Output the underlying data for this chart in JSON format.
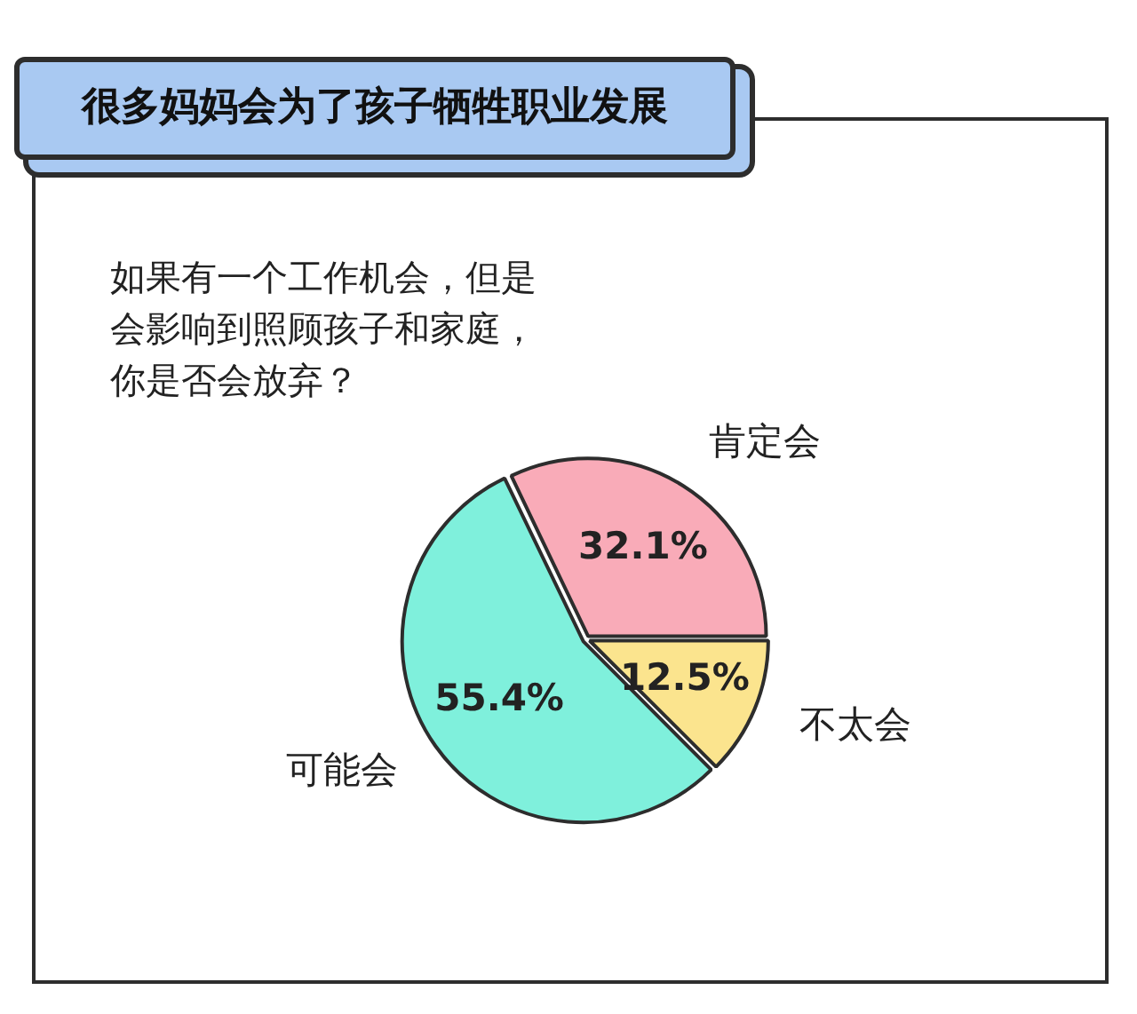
{
  "chart_data": {
    "type": "pie",
    "title": "很多妈妈会为了孩子牺牲职业发展",
    "subtitle": "如果有一个工作机会，但是会影响到照顾孩子和家庭，你是否会放弃？",
    "categories": [
      "肯定会",
      "不太会",
      "可能会"
    ],
    "values": [
      32.1,
      12.5,
      55.4
    ],
    "colors": [
      "#f9abb8",
      "#fbe48e",
      "#7ff0dc"
    ],
    "value_labels": [
      "32.1%",
      "12.5%",
      "55.4%"
    ],
    "legend": false
  }
}
